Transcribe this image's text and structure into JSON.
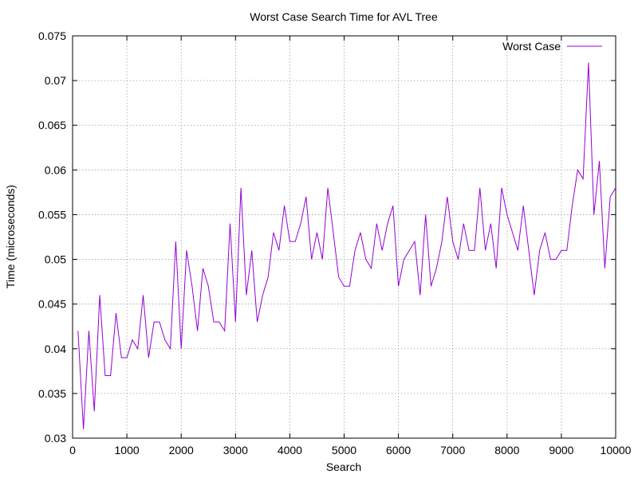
{
  "chart_data": {
    "type": "line",
    "title": "Worst Case Search Time for AVL Tree",
    "xlabel": "Search",
    "ylabel": "Time (microseconds)",
    "xlim": [
      0,
      10000
    ],
    "ylim": [
      0.03,
      0.075
    ],
    "xticks": [
      0,
      1000,
      2000,
      3000,
      4000,
      5000,
      6000,
      7000,
      8000,
      9000,
      10000
    ],
    "yticks": [
      0.03,
      0.035,
      0.04,
      0.045,
      0.05,
      0.055,
      0.06,
      0.065,
      0.07,
      0.075
    ],
    "xtick_labels": [
      "0",
      "1000",
      "2000",
      "3000",
      "4000",
      "5000",
      "6000",
      "7000",
      "8000",
      "9000",
      "10000"
    ],
    "ytick_labels": [
      "0.03",
      "0.035",
      "0.04",
      "0.045",
      "0.05",
      "0.055",
      "0.06",
      "0.065",
      "0.07",
      "0.075"
    ],
    "grid": true,
    "legend_position": "top-right",
    "series": [
      {
        "name": "Worst Case",
        "color": "#9400d3",
        "x": [
          100,
          200,
          300,
          400,
          500,
          600,
          700,
          800,
          900,
          1000,
          1100,
          1200,
          1300,
          1400,
          1500,
          1600,
          1700,
          1800,
          1900,
          2000,
          2100,
          2200,
          2300,
          2400,
          2500,
          2600,
          2700,
          2800,
          2900,
          3000,
          3100,
          3200,
          3300,
          3400,
          3500,
          3600,
          3700,
          3800,
          3900,
          4000,
          4100,
          4200,
          4300,
          4400,
          4500,
          4600,
          4700,
          4800,
          4900,
          5000,
          5100,
          5200,
          5300,
          5400,
          5500,
          5600,
          5700,
          5800,
          5900,
          6000,
          6100,
          6200,
          6300,
          6400,
          6500,
          6600,
          6700,
          6800,
          6900,
          7000,
          7100,
          7200,
          7300,
          7400,
          7500,
          7600,
          7700,
          7800,
          7900,
          8000,
          8100,
          8200,
          8300,
          8400,
          8500,
          8600,
          8700,
          8800,
          8900,
          9000,
          9100,
          9200,
          9300,
          9400,
          9500,
          9600,
          9700,
          9800,
          9900,
          10000
        ],
        "y": [
          0.042,
          0.031,
          0.042,
          0.033,
          0.046,
          0.037,
          0.037,
          0.044,
          0.039,
          0.039,
          0.041,
          0.04,
          0.046,
          0.039,
          0.043,
          0.043,
          0.041,
          0.04,
          0.052,
          0.04,
          0.051,
          0.047,
          0.042,
          0.049,
          0.047,
          0.043,
          0.043,
          0.042,
          0.054,
          0.043,
          0.058,
          0.046,
          0.051,
          0.043,
          0.046,
          0.048,
          0.053,
          0.051,
          0.056,
          0.052,
          0.052,
          0.054,
          0.057,
          0.05,
          0.053,
          0.05,
          0.058,
          0.053,
          0.048,
          0.047,
          0.047,
          0.051,
          0.053,
          0.05,
          0.049,
          0.054,
          0.051,
          0.054,
          0.056,
          0.047,
          0.05,
          0.051,
          0.052,
          0.046,
          0.055,
          0.047,
          0.049,
          0.052,
          0.057,
          0.052,
          0.05,
          0.054,
          0.051,
          0.051,
          0.058,
          0.051,
          0.054,
          0.049,
          0.058,
          0.055,
          0.053,
          0.051,
          0.056,
          0.051,
          0.046,
          0.051,
          0.053,
          0.05,
          0.05,
          0.051,
          0.051,
          0.056,
          0.06,
          0.059,
          0.072,
          0.055,
          0.061,
          0.049,
          0.057,
          0.058
        ]
      }
    ]
  }
}
